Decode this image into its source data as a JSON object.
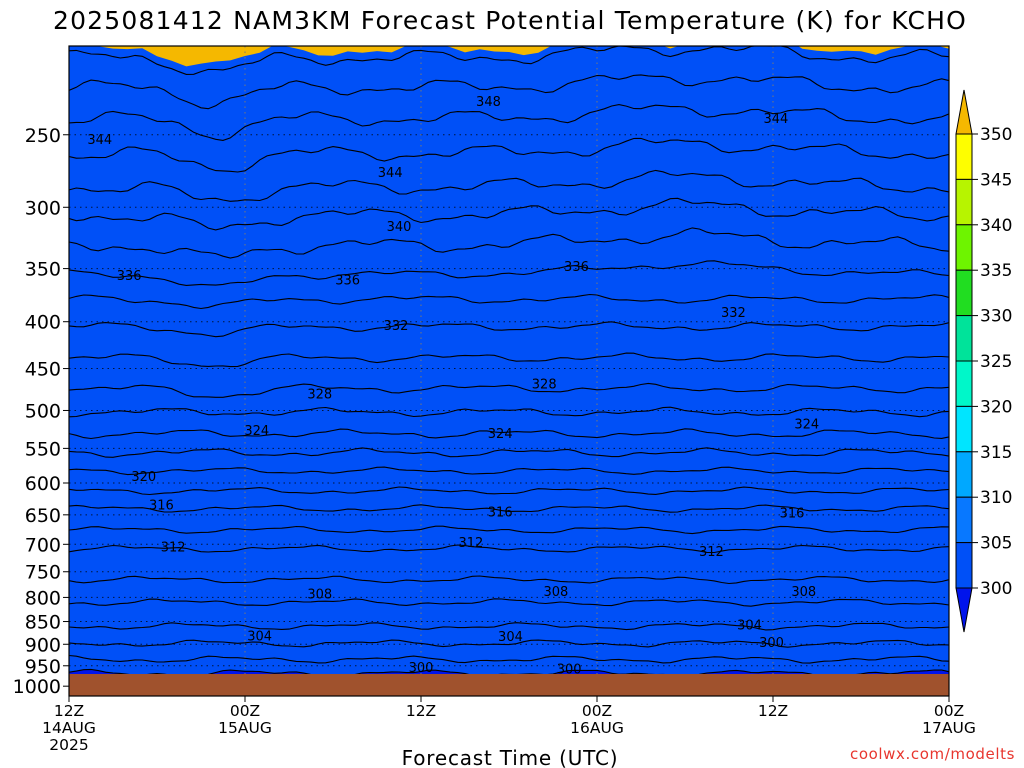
{
  "chart_data": {
    "type": "heatmap",
    "title": "2025081412 NAM3KM Forecast Potential Temperature (K) for KCHO",
    "xlabel": "Forecast Time (UTC)",
    "ylabel": "",
    "credit": "coolwx.com/modelts",
    "x_ticks": [
      {
        "line1": "12Z",
        "line2": "14AUG",
        "line3": "2025",
        "hour": 0
      },
      {
        "line1": "00Z",
        "line2": "15AUG",
        "line3": "",
        "hour": 12
      },
      {
        "line1": "12Z",
        "line2": "",
        "line3": "",
        "hour": 24
      },
      {
        "line1": "00Z",
        "line2": "16AUG",
        "line3": "",
        "hour": 36
      },
      {
        "line1": "12Z",
        "line2": "",
        "line3": "",
        "hour": 48
      },
      {
        "line1": "00Z",
        "line2": "17AUG",
        "line3": "",
        "hour": 60
      }
    ],
    "xlim": [
      0,
      60
    ],
    "pressure_levels": [
      1000,
      950,
      900,
      850,
      800,
      750,
      700,
      650,
      600,
      550,
      500,
      450,
      400,
      350,
      300,
      250
    ],
    "ylim": [
      1025,
      200
    ],
    "colorbar": {
      "labels": [
        "350",
        "345",
        "340",
        "335",
        "330",
        "325",
        "320",
        "315",
        "310",
        "305",
        "300"
      ],
      "bins": [
        {
          "range": [
            350,
            355
          ],
          "color": "#f5b800"
        },
        {
          "range": [
            345,
            350
          ],
          "color": "#fefe00"
        },
        {
          "range": [
            340,
            345
          ],
          "color": "#b7f400"
        },
        {
          "range": [
            335,
            340
          ],
          "color": "#6ef400"
        },
        {
          "range": [
            330,
            335
          ],
          "color": "#21dd21"
        },
        {
          "range": [
            325,
            330
          ],
          "color": "#00e39a"
        },
        {
          "range": [
            320,
            325
          ],
          "color": "#00f7c9"
        },
        {
          "range": [
            315,
            320
          ],
          "color": "#00e5ff"
        },
        {
          "range": [
            310,
            315
          ],
          "color": "#00a8ff"
        },
        {
          "range": [
            305,
            310
          ],
          "color": "#0878ff"
        },
        {
          "range": [
            300,
            305
          ],
          "color": "#0050f7"
        },
        {
          "range": [
            295,
            300
          ],
          "color": "#0014ec"
        }
      ]
    },
    "ground_color": "#a0522d",
    "contours": [
      {
        "theta": 300,
        "base_pressure": 968
      },
      {
        "theta": 302,
        "base_pressure": 935
      },
      {
        "theta": 304,
        "base_pressure": 898
      },
      {
        "theta": 306,
        "base_pressure": 860
      },
      {
        "theta": 308,
        "base_pressure": 810
      },
      {
        "theta": 310,
        "base_pressure": 765
      },
      {
        "theta": 312,
        "base_pressure": 708
      },
      {
        "theta": 314,
        "base_pressure": 675
      },
      {
        "theta": 316,
        "base_pressure": 640
      },
      {
        "theta": 318,
        "base_pressure": 612
      },
      {
        "theta": 320,
        "base_pressure": 582
      },
      {
        "theta": 322,
        "base_pressure": 556
      },
      {
        "theta": 324,
        "base_pressure": 530
      },
      {
        "theta": 326,
        "base_pressure": 502
      },
      {
        "theta": 328,
        "base_pressure": 473
      },
      {
        "theta": 330,
        "base_pressure": 438
      },
      {
        "theta": 332,
        "base_pressure": 405
      },
      {
        "theta": 334,
        "base_pressure": 378
      },
      {
        "theta": 336,
        "base_pressure": 355
      },
      {
        "theta": 338,
        "base_pressure": 330
      },
      {
        "theta": 340,
        "base_pressure": 306
      },
      {
        "theta": 342,
        "base_pressure": 285
      },
      {
        "theta": 344,
        "base_pressure": 262
      },
      {
        "theta": 346,
        "base_pressure": 240
      },
      {
        "theta": 348,
        "base_pressure": 222
      },
      {
        "theta": 350,
        "base_pressure": 206
      }
    ],
    "contour_labels": [
      {
        "text": "344",
        "hour": 2.1,
        "pressure": 253
      },
      {
        "text": "344",
        "hour": 21.9,
        "pressure": 275
      },
      {
        "text": "344",
        "hour": 48.2,
        "pressure": 240
      },
      {
        "text": "348",
        "hour": 28.6,
        "pressure": 230
      },
      {
        "text": "340",
        "hour": 22.5,
        "pressure": 315
      },
      {
        "text": "336",
        "hour": 4.1,
        "pressure": 356
      },
      {
        "text": "336",
        "hour": 19.0,
        "pressure": 360
      },
      {
        "text": "336",
        "hour": 34.6,
        "pressure": 348
      },
      {
        "text": "332",
        "hour": 22.3,
        "pressure": 404
      },
      {
        "text": "332",
        "hour": 45.3,
        "pressure": 391
      },
      {
        "text": "328",
        "hour": 17.1,
        "pressure": 480
      },
      {
        "text": "328",
        "hour": 32.4,
        "pressure": 468
      },
      {
        "text": "324",
        "hour": 12.8,
        "pressure": 526
      },
      {
        "text": "324",
        "hour": 29.4,
        "pressure": 530
      },
      {
        "text": "324",
        "hour": 50.3,
        "pressure": 517
      },
      {
        "text": "320",
        "hour": 5.1,
        "pressure": 590
      },
      {
        "text": "316",
        "hour": 6.3,
        "pressure": 634
      },
      {
        "text": "316",
        "hour": 29.4,
        "pressure": 645
      },
      {
        "text": "316",
        "hour": 49.3,
        "pressure": 647
      },
      {
        "text": "312",
        "hour": 7.1,
        "pressure": 705
      },
      {
        "text": "312",
        "hour": 27.4,
        "pressure": 697
      },
      {
        "text": "312",
        "hour": 43.8,
        "pressure": 713
      },
      {
        "text": "308",
        "hour": 17.1,
        "pressure": 793
      },
      {
        "text": "308",
        "hour": 33.2,
        "pressure": 788
      },
      {
        "text": "308",
        "hour": 50.1,
        "pressure": 788
      },
      {
        "text": "304",
        "hour": 13.0,
        "pressure": 881
      },
      {
        "text": "304",
        "hour": 30.1,
        "pressure": 883
      },
      {
        "text": "304",
        "hour": 46.4,
        "pressure": 857
      },
      {
        "text": "300",
        "hour": 24.0,
        "pressure": 954
      },
      {
        "text": "300",
        "hour": 34.1,
        "pressure": 958
      },
      {
        "text": "300",
        "hour": 47.9,
        "pressure": 896
      }
    ]
  }
}
